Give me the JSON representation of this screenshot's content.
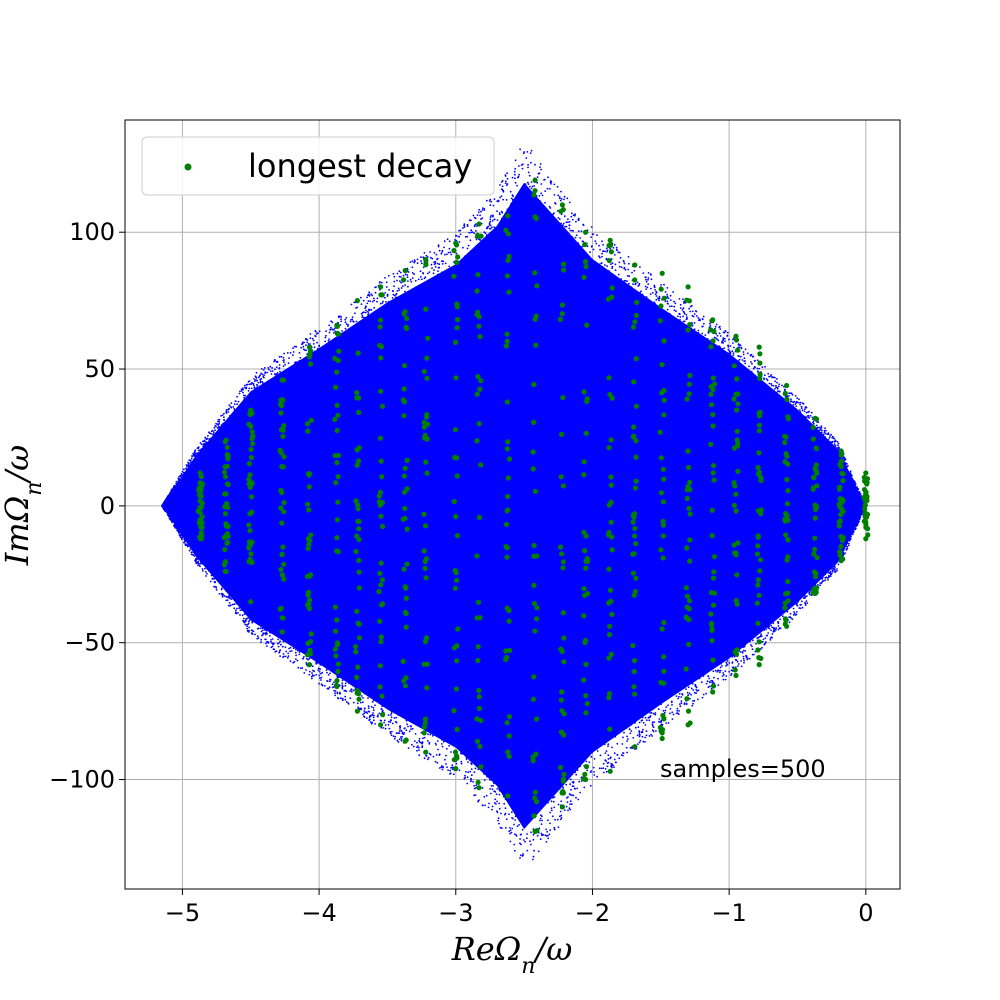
{
  "chart_data": {
    "type": "scatter",
    "title": "",
    "xlabel": "ReΩn/ω",
    "ylabel": "ImΩn/ω",
    "xlim": [
      -5.42,
      0.25
    ],
    "ylim": [
      -140,
      141
    ],
    "x_ticks": [
      -5,
      -4,
      -3,
      -2,
      -1,
      0
    ],
    "x_tick_labels": [
      "−5",
      "−4",
      "−3",
      "−2",
      "−1",
      "0"
    ],
    "y_ticks": [
      -100,
      -50,
      0,
      50,
      100
    ],
    "y_tick_labels": [
      "−100",
      "−50",
      "0",
      "50",
      "100"
    ],
    "grid": true,
    "legend": {
      "placement": "top-left",
      "entries": [
        "longest decay"
      ]
    },
    "annotation": "samples=500",
    "colors": {
      "all_modes": "#0000ff",
      "longest_decay": "#008000",
      "grid": "#b0b0b0"
    },
    "series": [
      {
        "color": "#0000ff",
        "marker_size": "small",
        "envelope": {
          "description_points": [
            [
              -5.15,
              0
            ],
            [
              -4.9,
              20
            ],
            [
              -4.5,
              45
            ],
            [
              -4.0,
              62
            ],
            [
              -3.5,
              80
            ],
            [
              -3.0,
              95
            ],
            [
              -2.7,
              110
            ],
            [
              -2.5,
              127
            ],
            [
              -2.3,
              115
            ],
            [
              -2.0,
              97
            ],
            [
              -1.5,
              78
            ],
            [
              -1.0,
              60
            ],
            [
              -0.5,
              38
            ],
            [
              -0.2,
              22
            ],
            [
              0.0,
              0
            ]
          ],
          "symmetric_about_y0": true,
          "approx_point_count": 6000
        }
      },
      {
        "name": "longest decay",
        "color": "#008000",
        "marker_size": "large",
        "columns_x": [
          -4.87,
          -4.68,
          -4.5,
          -4.27,
          -4.07,
          -3.87,
          -3.72,
          -3.55,
          -3.37,
          -3.22,
          -3.0,
          -2.83,
          -2.62,
          -2.42,
          -2.22,
          -2.05,
          -1.87,
          -1.69,
          -1.49,
          -1.3,
          -1.12,
          -0.95,
          -0.78,
          -0.58,
          -0.37,
          -0.18,
          0.0
        ],
        "columns_ymax": [
          12,
          24,
          35,
          46,
          58,
          66,
          75,
          80,
          86,
          90,
          96,
          103,
          106,
          119,
          110,
          100,
          97,
          88,
          85,
          80,
          68,
          62,
          58,
          44,
          32,
          20,
          12
        ],
        "approx_point_count": 900
      }
    ]
  }
}
